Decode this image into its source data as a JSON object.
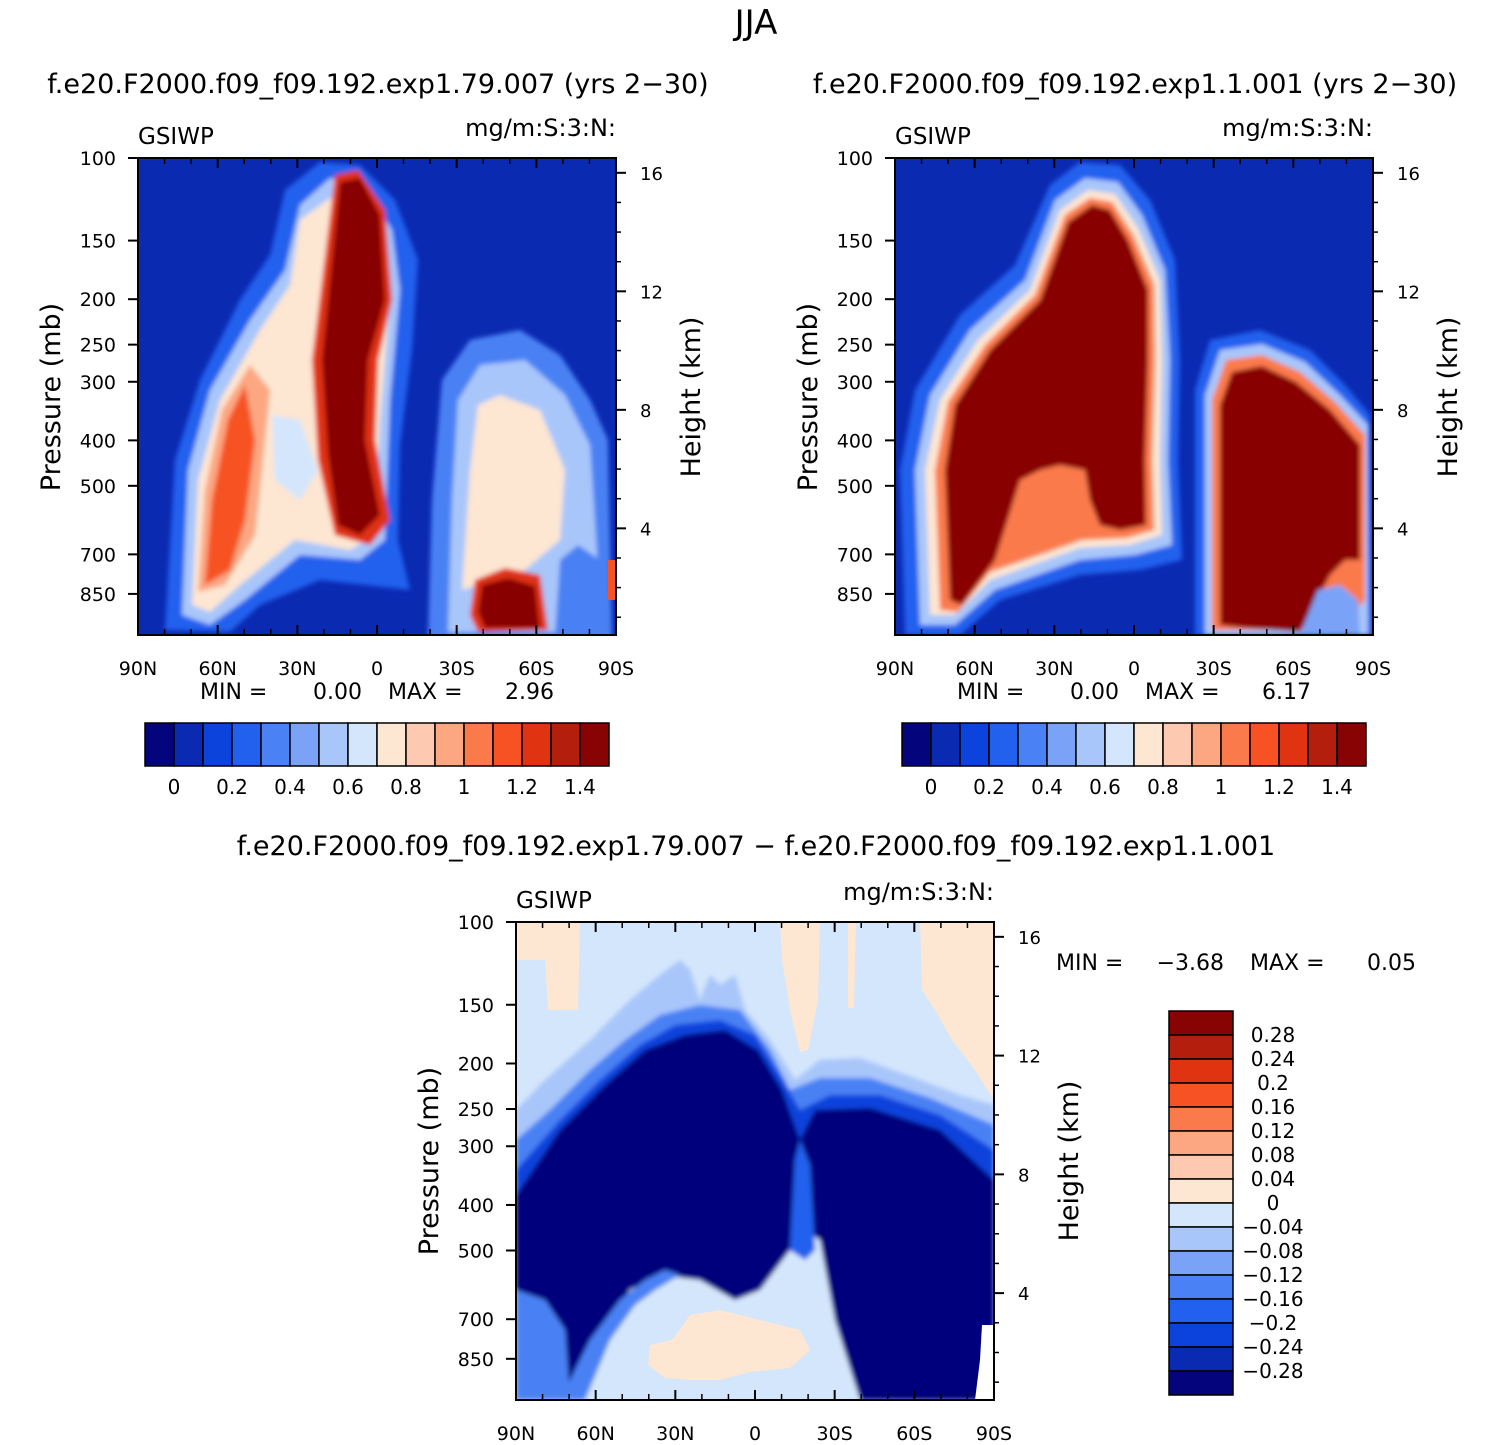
{
  "figure": {
    "season_title": "JJA",
    "panel_titles": [
      "f.e20.F2000.f09_f09.192.exp1.79.007 (yrs 2−30)",
      "f.e20.F2000.f09_f09.192.exp1.1.001 (yrs 2−30)",
      "f.e20.F2000.f09_f09.192.exp1.79.007 − f.e20.F2000.f09_f09.192.exp1.1.001"
    ]
  },
  "chart_data": [
    {
      "type": "heatmap",
      "variable": "GSIWP",
      "units": "mg/m:S:3:N:",
      "title": "f.e20.F2000.f09_f09.192.exp1.79.007 (yrs 2−30)",
      "xlabel": "",
      "ylabel": "Pressure (mb)",
      "y2label": "Height (km)",
      "x_ticks": [
        "90N",
        "60N",
        "30N",
        "0",
        "30S",
        "60S",
        "90S"
      ],
      "y_ticks": [
        "100",
        "150",
        "200",
        "250",
        "300",
        "400",
        "500",
        "700",
        "850"
      ],
      "y2_ticks": [
        "16",
        "12",
        "8",
        "4"
      ],
      "min_label": "MIN =",
      "min_value": "0.00",
      "max_label": "MAX =",
      "max_value": "2.96",
      "colorbar_labels": [
        "0",
        "0.2",
        "0.4",
        "0.6",
        "0.8",
        "1",
        "1.2",
        "1.4"
      ],
      "colorbar_colors": [
        "#04047c",
        "#0b2ab2",
        "#0b43dc",
        "#2161ee",
        "#4a81f4",
        "#7aa3f7",
        "#a9c6fa",
        "#d4e6fc",
        "#fde6d2",
        "#fdc9b0",
        "#fca782",
        "#fb7a4c",
        "#f75224",
        "#e03312",
        "#b41e0c",
        "#880404"
      ]
    },
    {
      "type": "heatmap",
      "variable": "GSIWP",
      "units": "mg/m:S:3:N:",
      "title": "f.e20.F2000.f09_f09.192.exp1.1.001 (yrs 2−30)",
      "xlabel": "",
      "ylabel": "Pressure (mb)",
      "y2label": "Height (km)",
      "x_ticks": [
        "90N",
        "60N",
        "30N",
        "0",
        "30S",
        "60S",
        "90S"
      ],
      "y_ticks": [
        "100",
        "150",
        "200",
        "250",
        "300",
        "400",
        "500",
        "700",
        "850"
      ],
      "y2_ticks": [
        "16",
        "12",
        "8",
        "4"
      ],
      "min_label": "MIN =",
      "min_value": "0.00",
      "max_label": "MAX =",
      "max_value": "6.17",
      "colorbar_labels": [
        "0",
        "0.2",
        "0.4",
        "0.6",
        "0.8",
        "1",
        "1.2",
        "1.4"
      ],
      "colorbar_colors": [
        "#04047c",
        "#0b2ab2",
        "#0b43dc",
        "#2161ee",
        "#4a81f4",
        "#7aa3f7",
        "#a9c6fa",
        "#d4e6fc",
        "#fde6d2",
        "#fdc9b0",
        "#fca782",
        "#fb7a4c",
        "#f75224",
        "#e03312",
        "#b41e0c",
        "#880404"
      ]
    },
    {
      "type": "heatmap",
      "variable": "GSIWP",
      "units": "mg/m:S:3:N:",
      "title": "f.e20.F2000.f09_f09.192.exp1.79.007 − f.e20.F2000.f09_f09.192.exp1.1.001",
      "xlabel": "",
      "ylabel": "Pressure (mb)",
      "y2label": "Height (km)",
      "x_ticks": [
        "90N",
        "60N",
        "30N",
        "0",
        "30S",
        "60S",
        "90S"
      ],
      "y_ticks": [
        "100",
        "150",
        "200",
        "250",
        "300",
        "400",
        "500",
        "700",
        "850"
      ],
      "y2_ticks": [
        "16",
        "12",
        "8",
        "4"
      ],
      "min_label": "MIN =",
      "min_value": "−3.68",
      "max_label": "MAX =",
      "max_value": "0.05",
      "colorbar_labels": [
        "0.28",
        "0.24",
        "0.2",
        "0.16",
        "0.12",
        "0.08",
        "0.04",
        "0",
        "−0.04",
        "−0.08",
        "−0.12",
        "−0.16",
        "−0.2",
        "−0.24",
        "−0.28"
      ],
      "colorbar_colors": [
        "#880404",
        "#b41e0c",
        "#e03312",
        "#f75224",
        "#fb7a4c",
        "#fca782",
        "#fdc9b0",
        "#fde6d2",
        "#d4e6fc",
        "#a9c6fa",
        "#7aa3f7",
        "#4a81f4",
        "#2161ee",
        "#0b43dc",
        "#0b2ab2",
        "#04047c"
      ]
    }
  ]
}
